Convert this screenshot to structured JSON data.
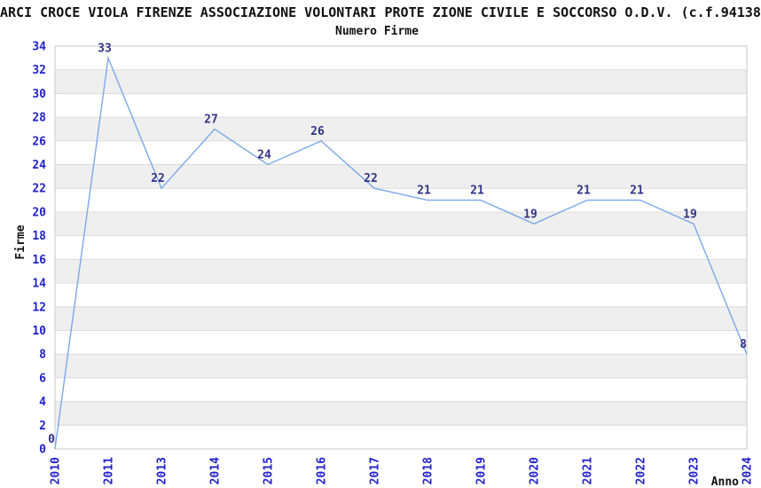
{
  "chart_data": {
    "type": "line",
    "title": "ARCI CROCE VIOLA FIRENZE ASSOCIAZIONE VOLONTARI PROTE ZIONE CIVILE E SOCCORSO O.D.V. (c.f.94138",
    "subtitle": "Numero Firme",
    "xlabel": "Anno",
    "ylabel": "Firme",
    "categories": [
      "2010",
      "2011",
      "2013",
      "2014",
      "2015",
      "2016",
      "2017",
      "2018",
      "2019",
      "2020",
      "2021",
      "2022",
      "2023",
      "2024"
    ],
    "values": [
      0,
      33,
      22,
      27,
      24,
      26,
      22,
      21,
      21,
      19,
      21,
      21,
      19,
      8
    ],
    "ylim": [
      0,
      34
    ],
    "ytick_step": 2,
    "grid": "alternating-horizontal-bands",
    "legend": "none",
    "marker": "none",
    "colors": {
      "line": "#7aa9e8",
      "tick_label": "#2222cc",
      "data_label": "#333388",
      "band_fill": "#efefef",
      "gridline": "#dcdcdc",
      "plot_border": "#c8c8c8",
      "text": "#111111",
      "background": "#ffffff"
    }
  }
}
